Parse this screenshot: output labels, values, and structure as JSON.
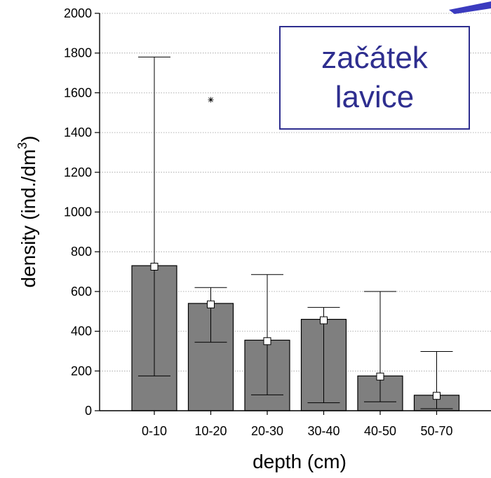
{
  "chart_data": {
    "type": "bar",
    "categories": [
      "0-10",
      "10-20",
      "20-30",
      "30-40",
      "40-50",
      "50-70"
    ],
    "values": [
      730,
      540,
      355,
      460,
      175,
      78
    ],
    "means": [
      725,
      535,
      350,
      455,
      172,
      75
    ],
    "error_low": [
      175,
      345,
      80,
      40,
      45,
      10
    ],
    "error_high": [
      1780,
      620,
      685,
      520,
      600,
      298
    ],
    "outliers": [
      {
        "category": "10-20",
        "value": 1565
      }
    ],
    "xlabel": "depth (cm)",
    "ylabel_main": "density (ind./dm",
    "ylabel_sup": "3",
    "ylabel_close": ")",
    "ylim": [
      0,
      2000
    ],
    "yticks": [
      0,
      200,
      400,
      600,
      800,
      1000,
      1200,
      1400,
      1600,
      1800,
      2000
    ],
    "grid": true,
    "colors": {
      "bar": "#7f7f7f",
      "annotation": "#2e2e8f",
      "accent_mark": "#3b3bbf"
    }
  },
  "annotation": {
    "line1": "začátek",
    "line2": "lavice"
  }
}
